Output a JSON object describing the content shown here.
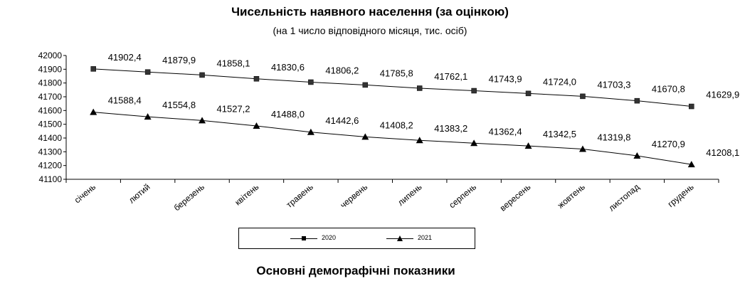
{
  "chart_data": {
    "type": "line",
    "title": "Чисельність наявного населення (за оцінкою)",
    "subtitle": "(на 1 число відповідного місяця, тис. осіб)",
    "categories": [
      "січень",
      "лютий",
      "березень",
      "квітень",
      "травень",
      "червень",
      "липень",
      "серпень",
      "вересень",
      "жовтень",
      "листопад",
      "грудень"
    ],
    "ylim": [
      41100,
      42000
    ],
    "yticks": [
      41100,
      41200,
      41300,
      41400,
      41500,
      41600,
      41700,
      41800,
      41900,
      42000
    ],
    "legend_position": "bottom",
    "series": [
      {
        "name": "2020",
        "marker": "square",
        "values": [
          41902.4,
          41879.9,
          41858.1,
          41830.6,
          41806.2,
          41785.8,
          41762.1,
          41743.9,
          41724.0,
          41703.3,
          41670.8,
          41629.9
        ],
        "labels": [
          "41902,4",
          "41879,9",
          "41858,1",
          "41830,6",
          "41806,2",
          "41785,8",
          "41762,1",
          "41743,9",
          "41724,0",
          "41703,3",
          "41670,8",
          "41629,9"
        ]
      },
      {
        "name": "2021",
        "marker": "triangle",
        "values": [
          41588.4,
          41554.8,
          41527.2,
          41488.0,
          41442.6,
          41408.2,
          41383.2,
          41362.4,
          41342.5,
          41319.8,
          41270.9,
          41208.1
        ],
        "labels": [
          "41588,4",
          "41554,8",
          "41527,2",
          "41488,0",
          "41442,6",
          "41408,2",
          "41383,2",
          "41362,4",
          "41342,5",
          "41319,8",
          "41270,9",
          "41208,1"
        ]
      }
    ]
  },
  "section_heading": "Основні демографічні показники"
}
